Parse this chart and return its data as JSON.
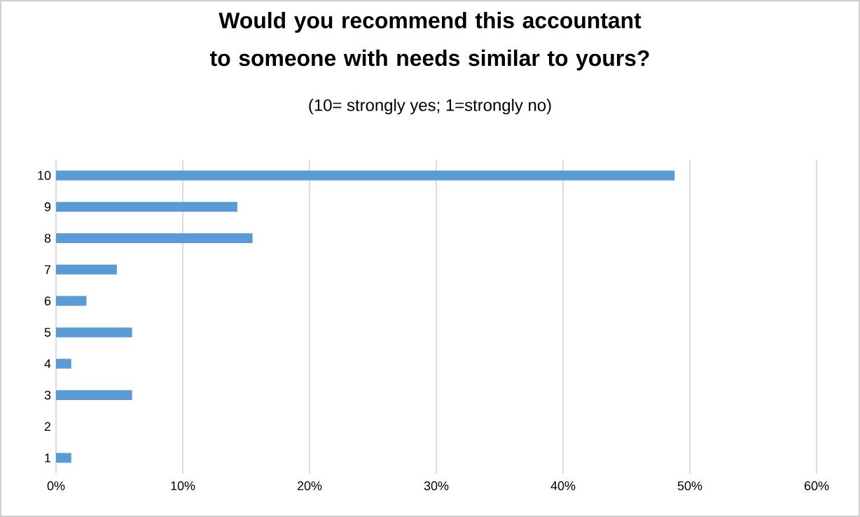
{
  "chart_data": {
    "type": "bar",
    "orientation": "horizontal",
    "title": "Would you recommend this accountant to someone with needs similar to yours?",
    "subtitle": "(10= strongly yes; 1=strongly no)",
    "categories": [
      "10",
      "9",
      "8",
      "7",
      "6",
      "5",
      "4",
      "3",
      "2",
      "1"
    ],
    "values": [
      48.8,
      14.3,
      15.5,
      4.8,
      2.4,
      6.0,
      1.2,
      6.0,
      0,
      1.2
    ],
    "color": "#5b9bd5",
    "xlim": [
      0,
      60
    ],
    "xticks": [
      {
        "value": 0,
        "label": "0%"
      },
      {
        "value": 10,
        "label": "10%"
      },
      {
        "value": 20,
        "label": "20%"
      },
      {
        "value": 30,
        "label": "30%"
      },
      {
        "value": 40,
        "label": "40%"
      },
      {
        "value": 50,
        "label": "50%"
      },
      {
        "value": 60,
        "label": "60%"
      }
    ],
    "grid": "x"
  }
}
